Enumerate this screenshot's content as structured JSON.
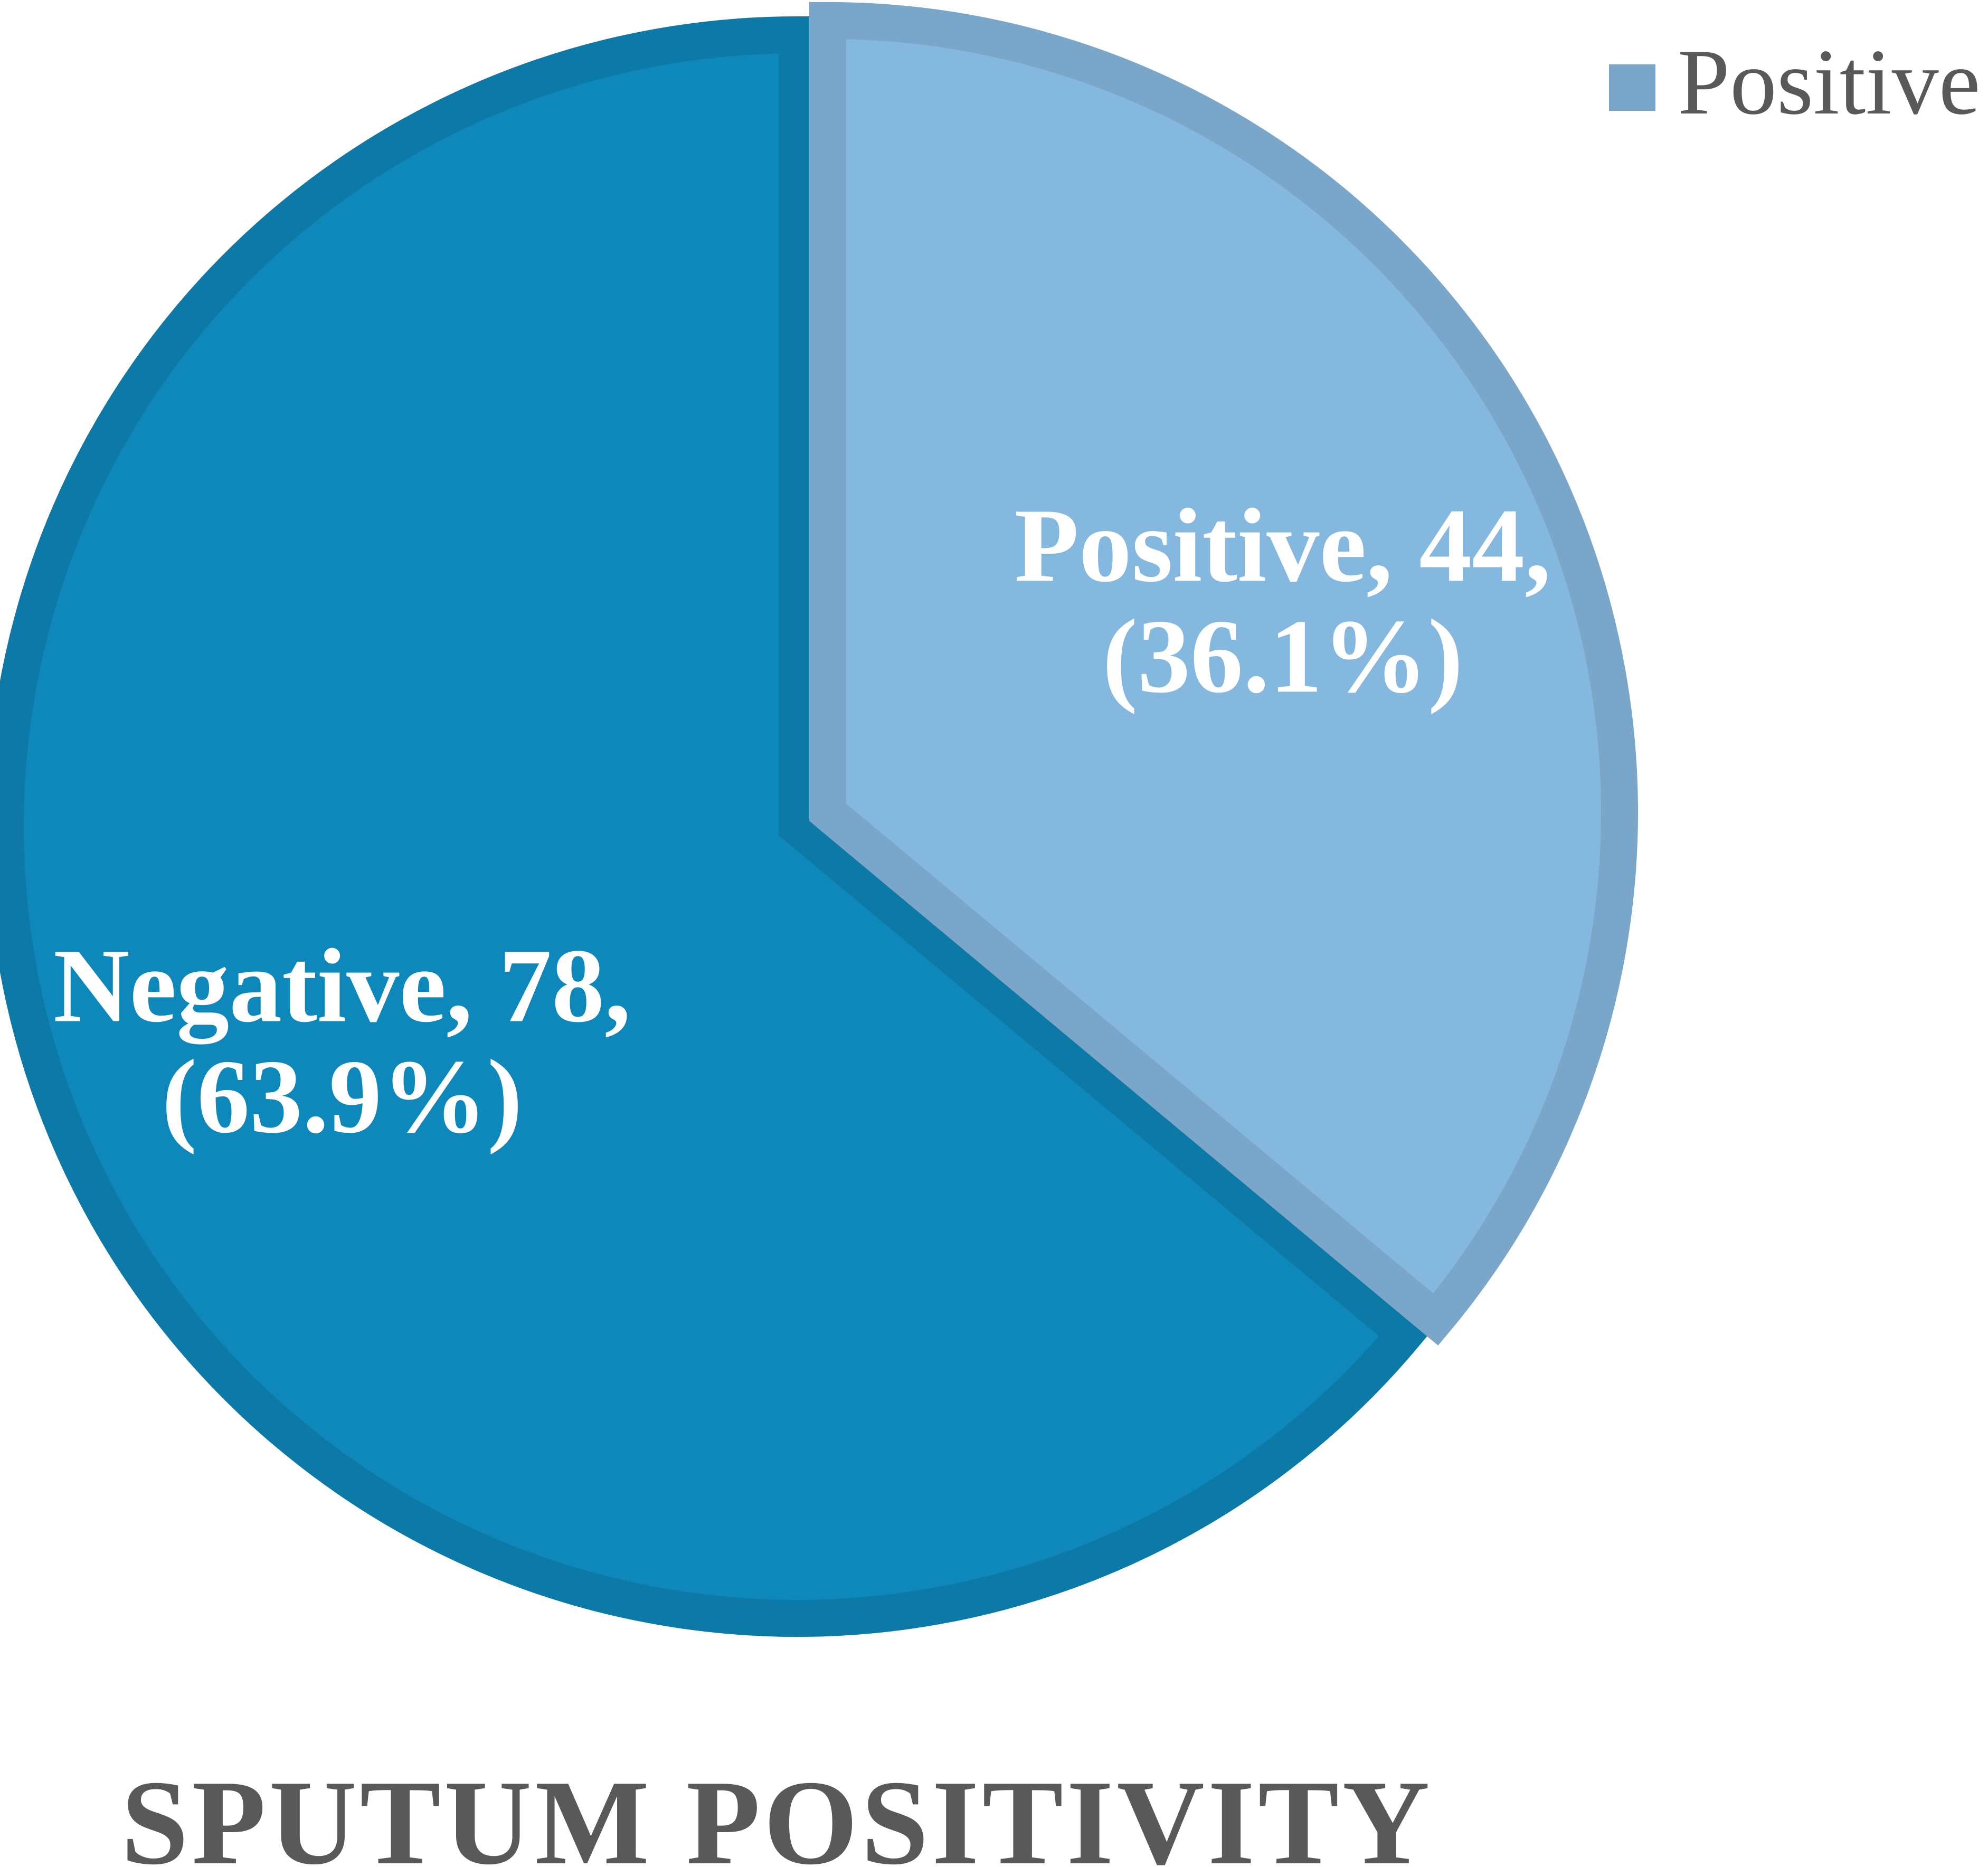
{
  "chart_data": {
    "type": "pie",
    "title": "SPUTUM POSITIVITY",
    "start_angle_deg": 0,
    "direction": "clockwise",
    "slices": [
      {
        "name": "Positive",
        "value": 44,
        "percent": "36.1%",
        "label_lines": [
          "Positive, 44,",
          "(36.1%)"
        ],
        "fill": "#85b8de",
        "border": "#7aa6c9",
        "exploded": true
      },
      {
        "name": "Negative",
        "value": 78,
        "percent": "63.9%",
        "label_lines": [
          "Negative, 78,",
          "(63.9%)"
        ],
        "fill": "#0e88bb",
        "border": "#0c79a6",
        "exploded": false
      }
    ],
    "legend": {
      "position": "top-right",
      "entries": [
        {
          "name": "Positive",
          "color": "#7aa6c9"
        }
      ]
    }
  }
}
